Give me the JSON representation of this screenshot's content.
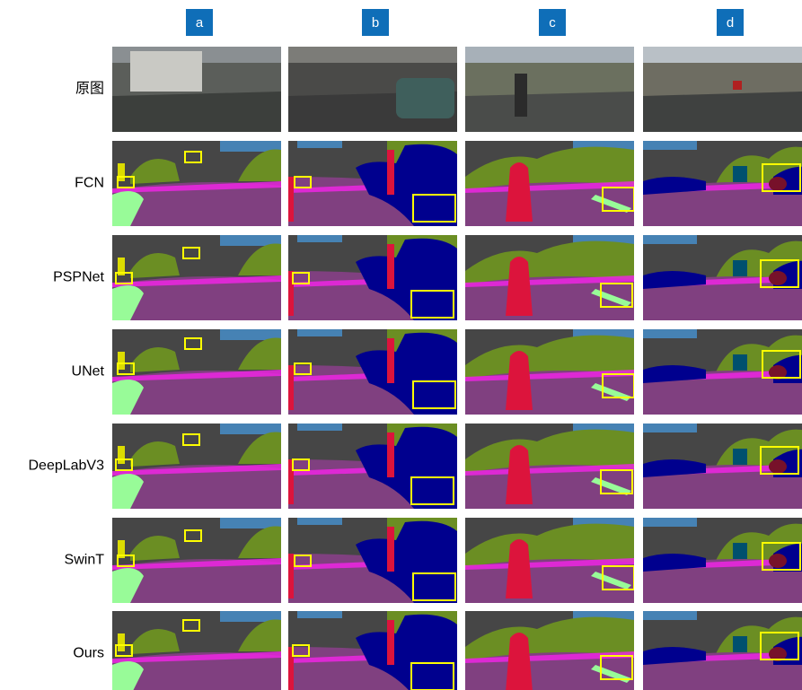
{
  "columns": [
    "a",
    "b",
    "c",
    "d"
  ],
  "rows": [
    "原图",
    "FCN",
    "PSPNet",
    "UNet",
    "DeepLabV3",
    "SwinT",
    "Ours"
  ]
}
